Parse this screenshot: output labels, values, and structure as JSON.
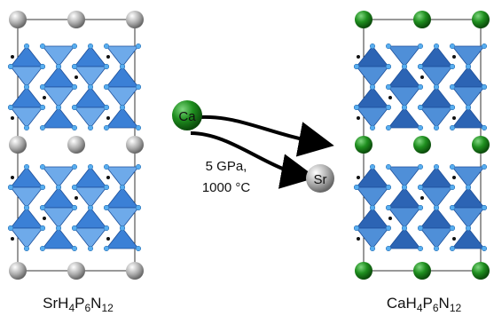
{
  "reaction": {
    "left_label": [
      "SrH",
      "4",
      "P",
      "6",
      "N",
      "12"
    ],
    "right_label": [
      "CaH",
      "4",
      "P",
      "6",
      "N",
      "12"
    ],
    "incoming_atom": "Ca",
    "outgoing_atom": "Sr",
    "conditions": [
      "5 GPa,",
      "1000 °C"
    ]
  }
}
